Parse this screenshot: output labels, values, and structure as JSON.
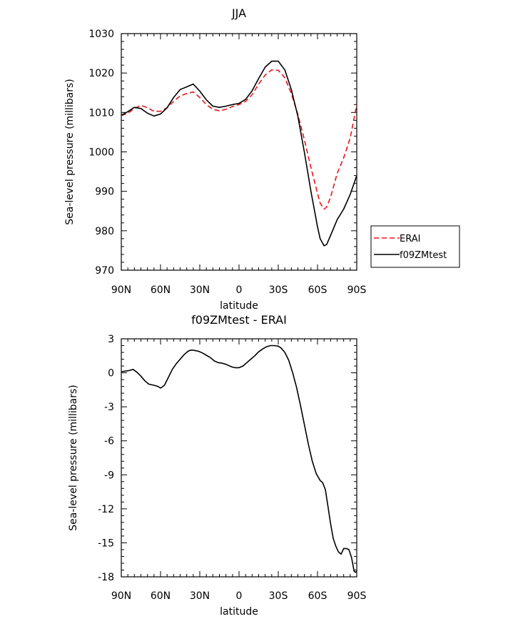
{
  "chart_data": [
    {
      "type": "line",
      "title": "JJA",
      "xlabel": "latitude",
      "ylabel": "Sea-level pressure (millibars)",
      "xlim": [
        90,
        -90
      ],
      "ylim": [
        970,
        1030
      ],
      "x_ticks": [
        90,
        60,
        30,
        0,
        -30,
        -60,
        -90
      ],
      "x_tick_labels": [
        "90N",
        "60N",
        "30N",
        "0",
        "30S",
        "60S",
        "90S"
      ],
      "y_ticks": [
        970,
        980,
        990,
        1000,
        1010,
        1020,
        1030
      ],
      "y_tick_labels": [
        "970",
        "980",
        "990",
        "1000",
        "1010",
        "1020",
        "1030"
      ],
      "grid": false,
      "legend_position": "right",
      "series": [
        {
          "name": "ERAI",
          "color": "#e8141b",
          "dash": "dashed",
          "x": [
            90,
            85,
            80,
            75,
            70,
            65,
            60,
            55,
            50,
            45,
            40,
            35,
            30,
            25,
            20,
            15,
            10,
            5,
            0,
            -5,
            -10,
            -15,
            -20,
            -25,
            -30,
            -35,
            -40,
            -45,
            -50,
            -55,
            -60,
            -62,
            -65,
            -67,
            -70,
            -75,
            -80,
            -85,
            -90
          ],
          "values": [
            1009.2,
            1009.8,
            1011.0,
            1011.8,
            1011.2,
            1010.3,
            1010.3,
            1011.2,
            1012.8,
            1014.2,
            1014.8,
            1015.2,
            1013.8,
            1012.0,
            1010.8,
            1010.4,
            1010.8,
            1011.5,
            1012.0,
            1012.8,
            1014.5,
            1017.2,
            1019.5,
            1020.8,
            1020.7,
            1018.8,
            1014.8,
            1009.5,
            1003.0,
            996.0,
            989.5,
            987.0,
            985.5,
            986.0,
            988.5,
            994.5,
            998.5,
            1003.5,
            1012.0
          ]
        },
        {
          "name": "f09ZMtest",
          "color": "#000000",
          "dash": "solid",
          "x": [
            90,
            85,
            80,
            75,
            70,
            65,
            60,
            55,
            50,
            45,
            40,
            35,
            30,
            25,
            20,
            15,
            10,
            5,
            0,
            -5,
            -10,
            -15,
            -20,
            -25,
            -30,
            -35,
            -40,
            -45,
            -50,
            -55,
            -60,
            -62,
            -65,
            -67,
            -70,
            -75,
            -80,
            -85,
            -90
          ],
          "values": [
            1009.3,
            1010.2,
            1011.3,
            1011.0,
            1009.8,
            1009.1,
            1009.6,
            1011.2,
            1013.8,
            1015.8,
            1016.5,
            1017.2,
            1015.4,
            1013.2,
            1011.6,
            1011.3,
            1011.6,
            1012.0,
            1012.3,
            1013.3,
            1015.5,
            1018.6,
            1021.5,
            1023.0,
            1023.0,
            1020.8,
            1015.8,
            1009.0,
            999.8,
            990.0,
            981.0,
            978.0,
            976.2,
            976.5,
            978.8,
            982.8,
            985.5,
            989.2,
            994.0
          ]
        }
      ]
    },
    {
      "type": "line",
      "title": "f09ZMtest - ERAI",
      "xlabel": "latitude",
      "ylabel": "Sea-level pressure (millibars)",
      "xlim": [
        90,
        -90
      ],
      "ylim": [
        -18,
        3
      ],
      "x_ticks": [
        90,
        60,
        30,
        0,
        -30,
        -60,
        -90
      ],
      "x_tick_labels": [
        "90N",
        "60N",
        "30N",
        "0",
        "30S",
        "60S",
        "90S"
      ],
      "y_ticks": [
        -18,
        -15,
        -12,
        -9,
        -6,
        -3,
        0,
        3
      ],
      "y_tick_labels": [
        "-18",
        "-15",
        "-12",
        "-9",
        "-6",
        "-3",
        "0",
        "3"
      ],
      "grid": false,
      "series": [
        {
          "color": "#000000",
          "dash": "solid",
          "x": [
            90,
            87,
            84,
            81,
            78,
            75,
            72,
            69,
            65,
            62,
            60,
            57,
            54,
            51,
            48,
            45,
            42,
            39,
            37,
            35,
            33,
            31,
            28,
            25,
            22,
            19,
            16,
            13,
            10,
            7,
            5,
            3,
            0,
            -3,
            -6,
            -9,
            -12,
            -15,
            -18,
            -21,
            -24,
            -27,
            -30,
            -32,
            -35,
            -38,
            -41,
            -44,
            -47,
            -50,
            -53,
            -56,
            -59,
            -62,
            -64,
            -66,
            -68,
            -70,
            -72,
            -74,
            -76,
            -78,
            -80,
            -82,
            -84,
            -86,
            -88,
            -89,
            -90
          ],
          "values": [
            0.1,
            0.15,
            0.2,
            0.3,
            0.05,
            -0.3,
            -0.7,
            -1.0,
            -1.1,
            -1.2,
            -1.35,
            -1.1,
            -0.4,
            0.3,
            0.8,
            1.2,
            1.6,
            1.9,
            2.0,
            2.0,
            1.95,
            1.9,
            1.75,
            1.55,
            1.35,
            1.05,
            0.9,
            0.85,
            0.75,
            0.6,
            0.5,
            0.45,
            0.45,
            0.6,
            0.9,
            1.2,
            1.5,
            1.85,
            2.1,
            2.3,
            2.4,
            2.4,
            2.35,
            2.2,
            1.8,
            1.1,
            0.0,
            -1.3,
            -2.9,
            -4.6,
            -6.3,
            -7.8,
            -8.9,
            -9.5,
            -9.7,
            -10.3,
            -11.8,
            -13.3,
            -14.6,
            -15.3,
            -15.8,
            -16.0,
            -15.5,
            -15.5,
            -15.6,
            -16.3,
            -17.5,
            -17.6,
            -17.5
          ]
        }
      ]
    }
  ]
}
